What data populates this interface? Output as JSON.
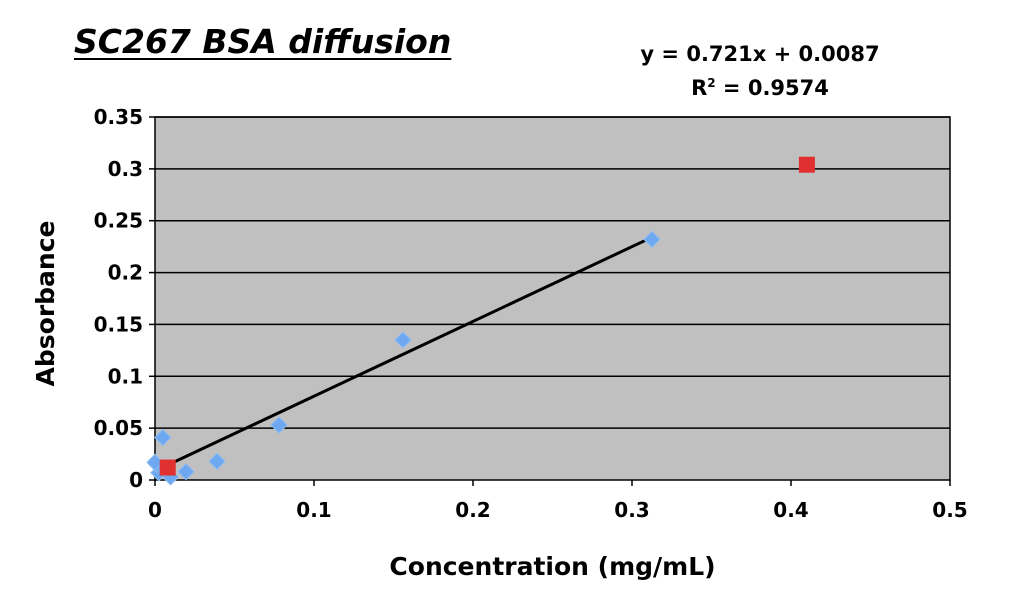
{
  "chart_data": {
    "type": "scatter",
    "title": "SC267 BSA diffusion",
    "xlabel": "Concentration (mg/mL)",
    "ylabel": "Absorbance",
    "xlim": [
      0,
      0.5
    ],
    "ylim": [
      0,
      0.35
    ],
    "xticks": [
      "0",
      "0.1",
      "0.2",
      "0.3",
      "0.4",
      "0.5"
    ],
    "yticks": [
      "0",
      "0.05",
      "0.1",
      "0.15",
      "0.2",
      "0.25",
      "0.3",
      "0.35"
    ],
    "grid": "horizontal",
    "plot_background": "#c0c0c0",
    "trendline": {
      "equation": "y = 0.721x + 0.0087",
      "r_squared_label": "R",
      "r_squared_sup": "2",
      "r_squared_value": " = 0.9574",
      "slope": 0.721,
      "intercept": 0.0087,
      "x_range": [
        0,
        0.3125
      ],
      "color": "#000000"
    },
    "series": [
      {
        "marker": "diamond",
        "color": "#6ea8f0",
        "points": [
          {
            "x": 0.3125,
            "y": 0.232
          },
          {
            "x": 0.156,
            "y": 0.135
          },
          {
            "x": 0.078,
            "y": 0.053
          },
          {
            "x": 0.039,
            "y": 0.018
          },
          {
            "x": 0.0195,
            "y": 0.008
          },
          {
            "x": 0.0098,
            "y": 0.003
          },
          {
            "x": 0.0049,
            "y": 0.041
          },
          {
            "x": 0.0024,
            "y": 0.007
          },
          {
            "x": 0.0012,
            "y": 0.015
          },
          {
            "x": 0.0,
            "y": 0.017
          }
        ]
      },
      {
        "marker": "square",
        "color": "#e03030",
        "points": [
          {
            "x": 0.41,
            "y": 0.304
          },
          {
            "x": 0.008,
            "y": 0.012
          }
        ]
      }
    ]
  }
}
